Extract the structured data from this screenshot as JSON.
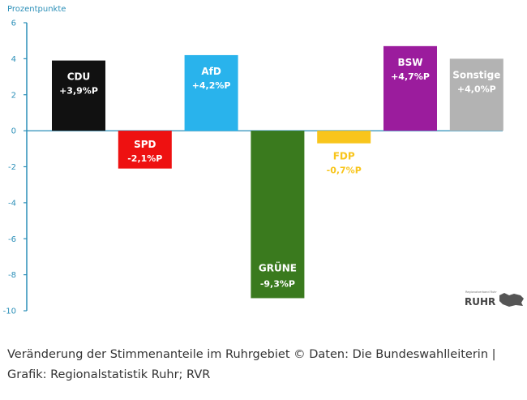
{
  "chart_data": {
    "type": "bar",
    "ylabel": "Prozentpunkte",
    "ylim": [
      -10,
      6
    ],
    "yticks": [
      6,
      4,
      2,
      0,
      -2,
      -4,
      -6,
      -8,
      -10
    ],
    "grid": false,
    "categories": [
      "CDU",
      "SPD",
      "AfD",
      "GRÜNE",
      "FDP",
      "BSW",
      "Sonstige"
    ],
    "values": [
      3.9,
      -2.1,
      4.2,
      -9.3,
      -0.7,
      4.7,
      4.0
    ],
    "value_labels": [
      "+3,9%P",
      "-2,1%P",
      "+4,2%P",
      "-9,3%P",
      "-0,7%P",
      "+4,7%P",
      "+4,0%P"
    ],
    "colors": [
      "#111111",
      "#ee1111",
      "#29b3ec",
      "#3a7a1e",
      "#f8c51c",
      "#9b1c9d",
      "#b3b3b3"
    ],
    "label_colors": [
      "#ffffff",
      "#ffffff",
      "#ffffff",
      "#ffffff",
      "#f8c51c",
      "#ffffff",
      "#ffffff"
    ]
  },
  "logo": {
    "text": "RUHR"
  },
  "caption": "Veränderung der Stimmenanteile im Ruhrgebiet © Daten: Die Bundeswahlleiterin | Grafik: Regionalstatistik Ruhr; RVR"
}
